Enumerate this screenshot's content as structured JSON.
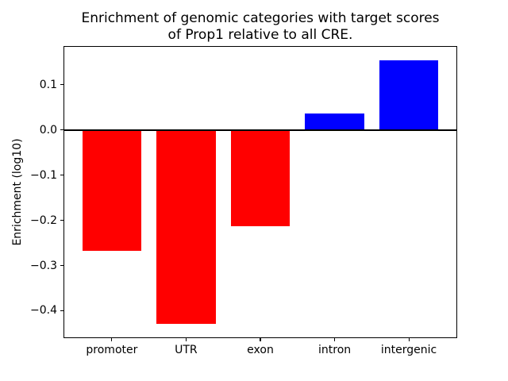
{
  "chart_data": {
    "type": "bar",
    "title": "Enrichment of genomic categories with target scores of Prop1 relative to all CRE.",
    "title_lines": [
      "Enrichment of genomic categories with target scores",
      "of Prop1 relative to all CRE."
    ],
    "xlabel": "",
    "ylabel": "Enrichment (log10)",
    "categories": [
      "promoter",
      "UTR",
      "exon",
      "intron",
      "intergenic"
    ],
    "values": [
      -0.267,
      -0.43,
      -0.213,
      0.037,
      0.155
    ],
    "bar_colors": [
      "#ff0000",
      "#ff0000",
      "#ff0000",
      "#0000ff",
      "#0000ff"
    ],
    "negative_color": "#ff0000",
    "positive_color": "#0000ff",
    "yticks": [
      0.1,
      0.0,
      -0.1,
      -0.2,
      -0.3,
      -0.4
    ],
    "ylim": [
      -0.459,
      0.184
    ],
    "xlim": [
      -0.64,
      4.64
    ],
    "bar_width_units": 0.8,
    "zero_line": {
      "y": 0,
      "color": "#000000"
    },
    "grid": false,
    "legend": null,
    "background": "#ffffff",
    "spine_color": "#000000"
  }
}
